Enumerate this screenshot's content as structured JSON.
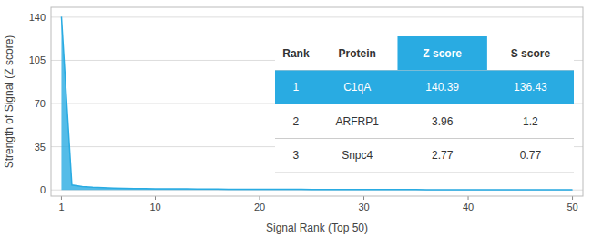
{
  "chart_data": {
    "type": "area",
    "xlabel": "Signal Rank (Top 50)",
    "ylabel": "Strength of Signal (Z score)",
    "x": [
      1,
      2,
      3,
      4,
      5,
      6,
      7,
      8,
      9,
      10,
      11,
      12,
      13,
      14,
      15,
      16,
      17,
      18,
      19,
      20,
      21,
      22,
      23,
      24,
      25,
      26,
      27,
      28,
      29,
      30,
      31,
      32,
      33,
      34,
      35,
      36,
      37,
      38,
      39,
      40,
      41,
      42,
      43,
      44,
      45,
      46,
      47,
      48,
      49,
      50
    ],
    "values": [
      140.39,
      3.96,
      2.77,
      2.1,
      1.8,
      1.5,
      1.3,
      1.1,
      1.0,
      0.95,
      0.9,
      0.85,
      0.8,
      0.75,
      0.7,
      0.65,
      0.6,
      0.58,
      0.55,
      0.52,
      0.5,
      0.48,
      0.46,
      0.44,
      0.42,
      0.4,
      0.38,
      0.36,
      0.34,
      0.32,
      0.3,
      0.28,
      0.27,
      0.26,
      0.25,
      0.24,
      0.23,
      0.22,
      0.21,
      0.2,
      0.19,
      0.18,
      0.17,
      0.16,
      0.15,
      0.14,
      0.13,
      0.12,
      0.11,
      0.1
    ],
    "color": "#29ABE2",
    "xlim": [
      0,
      51
    ],
    "ylim": [
      -5,
      148
    ],
    "xticks": [
      1,
      10,
      20,
      30,
      40,
      50
    ],
    "yticks": [
      0,
      35,
      70,
      105,
      140
    ],
    "grid": true,
    "table": {
      "headers": [
        "Rank",
        "Protein",
        "Z score",
        "S score"
      ],
      "rows": [
        [
          "1",
          "C1qA",
          "140.39",
          "136.43"
        ],
        [
          "2",
          "ARFRP1",
          "3.96",
          "1.2"
        ],
        [
          "3",
          "Snpc4",
          "2.77",
          "0.77"
        ]
      ],
      "highlight_row": 0,
      "highlight_color": "#29ABE2"
    }
  }
}
